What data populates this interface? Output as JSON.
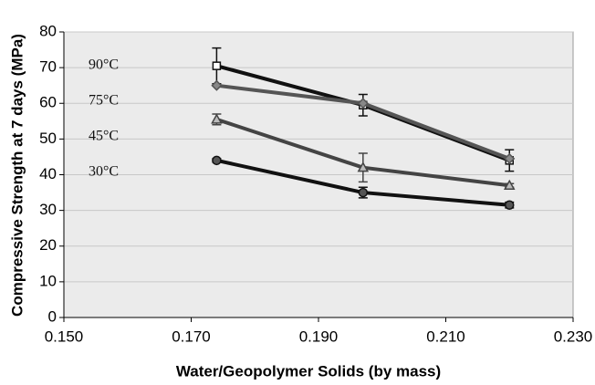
{
  "chart_data": {
    "type": "line",
    "x_label": "Water/Geopolymer Solids (by mass)",
    "y_label": "Compressive Strength at 7 days (MPa)",
    "xlim": [
      0.15,
      0.23
    ],
    "xticks": [
      {
        "value": 0.15,
        "label": "0.150"
      },
      {
        "value": 0.17,
        "label": "0.170"
      },
      {
        "value": 0.19,
        "label": "0.190"
      },
      {
        "value": 0.21,
        "label": "0.210"
      },
      {
        "value": 0.23,
        "label": "0.230"
      }
    ],
    "ylim": [
      0,
      80
    ],
    "yticks": [
      0,
      10,
      20,
      30,
      40,
      50,
      60,
      70,
      80
    ],
    "grid": true,
    "x": [
      0.174,
      0.197,
      0.22
    ],
    "series": [
      {
        "name": "90°C",
        "color": "#111111",
        "marker": "square",
        "values": [
          70.5,
          59.5,
          44
        ],
        "errors": [
          5,
          3,
          3
        ]
      },
      {
        "name": "75°C",
        "color": "#555555",
        "marker": "diamond",
        "values": [
          65,
          60,
          44.5
        ]
      },
      {
        "name": "45°C",
        "color": "#444444",
        "marker": "triangle",
        "values": [
          55.5,
          42,
          37
        ],
        "errors": [
          1.5,
          4,
          0.5
        ]
      },
      {
        "name": "30°C",
        "color": "#111111",
        "marker": "circle",
        "values": [
          44,
          35,
          31.5
        ],
        "errors": [
          0.5,
          1.5,
          0.8
        ]
      }
    ]
  }
}
